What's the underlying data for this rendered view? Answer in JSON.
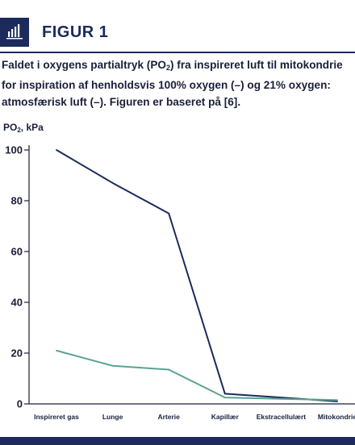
{
  "header": {
    "figure_label": "FIGUR 1",
    "icon": "bar-chart-icon"
  },
  "caption": {
    "part1": "Faldet i oxygens partialtryk (PO",
    "sub": "2",
    "part2": ") fra inspireret luft til mitokondrie for inspiration af henholdsvis 100% oxygen (–) og 21% oxygen: atmosfærisk luft (–). Figuren er baseret på [6]."
  },
  "colors": {
    "dark_line": "#1c2a5c",
    "light_line": "#5aa393",
    "axis": "#1a1f3a"
  },
  "chart_data": {
    "type": "line",
    "ylabel_main": "PO",
    "ylabel_sub": "2",
    "ylabel_unit": ", kPa",
    "categories": [
      "Inspireret gas",
      "Lunge",
      "Arterie",
      "Kapillær",
      "Ekstracellulært",
      "Mitokondrie"
    ],
    "ylim": [
      0,
      100
    ],
    "yticks": [
      0,
      20,
      40,
      60,
      80,
      100
    ],
    "series": [
      {
        "key": "oxygen100",
        "color": "#1c2a5c",
        "values": [
          100,
          87,
          75,
          4,
          2.5,
          1
        ]
      },
      {
        "key": "oxygen21",
        "color": "#5aa393",
        "values": [
          21,
          15,
          13.5,
          2.5,
          2,
          1.5
        ]
      }
    ]
  }
}
